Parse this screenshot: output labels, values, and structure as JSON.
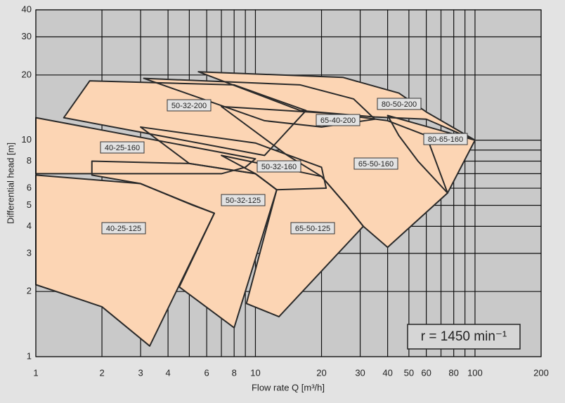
{
  "chart_data": {
    "type": "region",
    "xlabel": "Flow rate Q [m³/h]",
    "ylabel": "Differential head [m]",
    "annotation": "r = 1450 min⁻¹",
    "xlog": true,
    "ylog": true,
    "grid": true,
    "xlim": [
      1,
      200
    ],
    "ylim": [
      1,
      40
    ],
    "xticks": [
      1,
      2,
      3,
      4,
      6,
      8,
      10,
      20,
      30,
      40,
      50,
      60,
      80,
      100,
      200
    ],
    "xminor": [
      5,
      7,
      9,
      70,
      90
    ],
    "yticks": [
      1,
      2,
      3,
      4,
      5,
      6,
      8,
      10,
      20,
      30,
      40
    ],
    "yminor": [
      7,
      9
    ],
    "color": "#fcd5b4",
    "series": [
      {
        "name": "50-32-200",
        "x": [
          1.34,
          1.76,
          8,
          17,
          11,
          1.34
        ],
        "y": [
          12.7,
          18.8,
          18,
          13.7,
          8.5,
          12.7
        ]
      },
      {
        "name": "40-25-160",
        "x": [
          1,
          10,
          9,
          7,
          1
        ],
        "y": [
          12.7,
          8.2,
          7.5,
          7.0,
          7.0
        ]
      },
      {
        "name": "50-32-160",
        "x": [
          3,
          10,
          20,
          21,
          12.5,
          10,
          5
        ],
        "y": [
          11.5,
          9.7,
          7.5,
          6.0,
          5.9,
          7.0,
          7.8
        ]
      },
      {
        "name": "65-40-200",
        "x": [
          3.1,
          16,
          28,
          35,
          20,
          11,
          3.1
        ],
        "y": [
          19.3,
          18,
          15.5,
          12.5,
          11.5,
          12.3,
          19.3
        ]
      },
      {
        "name": "80-50-200",
        "x": [
          5.5,
          25,
          45,
          60,
          100,
          60,
          35,
          16
        ],
        "y": [
          20.7,
          19.5,
          16.5,
          13.5,
          10,
          12.5,
          12.8,
          13.7
        ]
      },
      {
        "name": "80-65-160",
        "x": [
          40,
          100,
          75,
          55,
          45
        ],
        "y": [
          13,
          10,
          5.7,
          8,
          10.5
        ]
      },
      {
        "name": "65-50-160",
        "x": [
          7,
          22,
          40,
          60,
          75,
          40,
          31,
          26,
          20,
          14
        ],
        "y": [
          14.3,
          13.3,
          12.3,
          10.5,
          5.7,
          3.2,
          4.0,
          5.0,
          6.8,
          8.5
        ]
      },
      {
        "name": "50-32-125",
        "x": [
          1.8,
          5,
          10,
          12.5,
          8,
          4.5,
          6.5,
          5,
          3,
          1.8
        ],
        "y": [
          8.0,
          7.8,
          7.0,
          5.9,
          1.36,
          2.1,
          4.6,
          5.1,
          6.3,
          6.9
        ]
      },
      {
        "name": "40-25-125",
        "x": [
          1,
          3,
          5.2,
          6.5,
          3.3,
          2,
          1
        ],
        "y": [
          6.9,
          6.3,
          5.0,
          4.6,
          1.12,
          1.7,
          2.15
        ]
      },
      {
        "name": "65-50-125",
        "x": [
          7,
          20,
          26,
          31,
          12.8,
          9.1,
          12.5,
          10
        ],
        "y": [
          8.5,
          6.8,
          5.0,
          4.0,
          1.53,
          1.76,
          5.9,
          7.0
        ]
      }
    ]
  }
}
